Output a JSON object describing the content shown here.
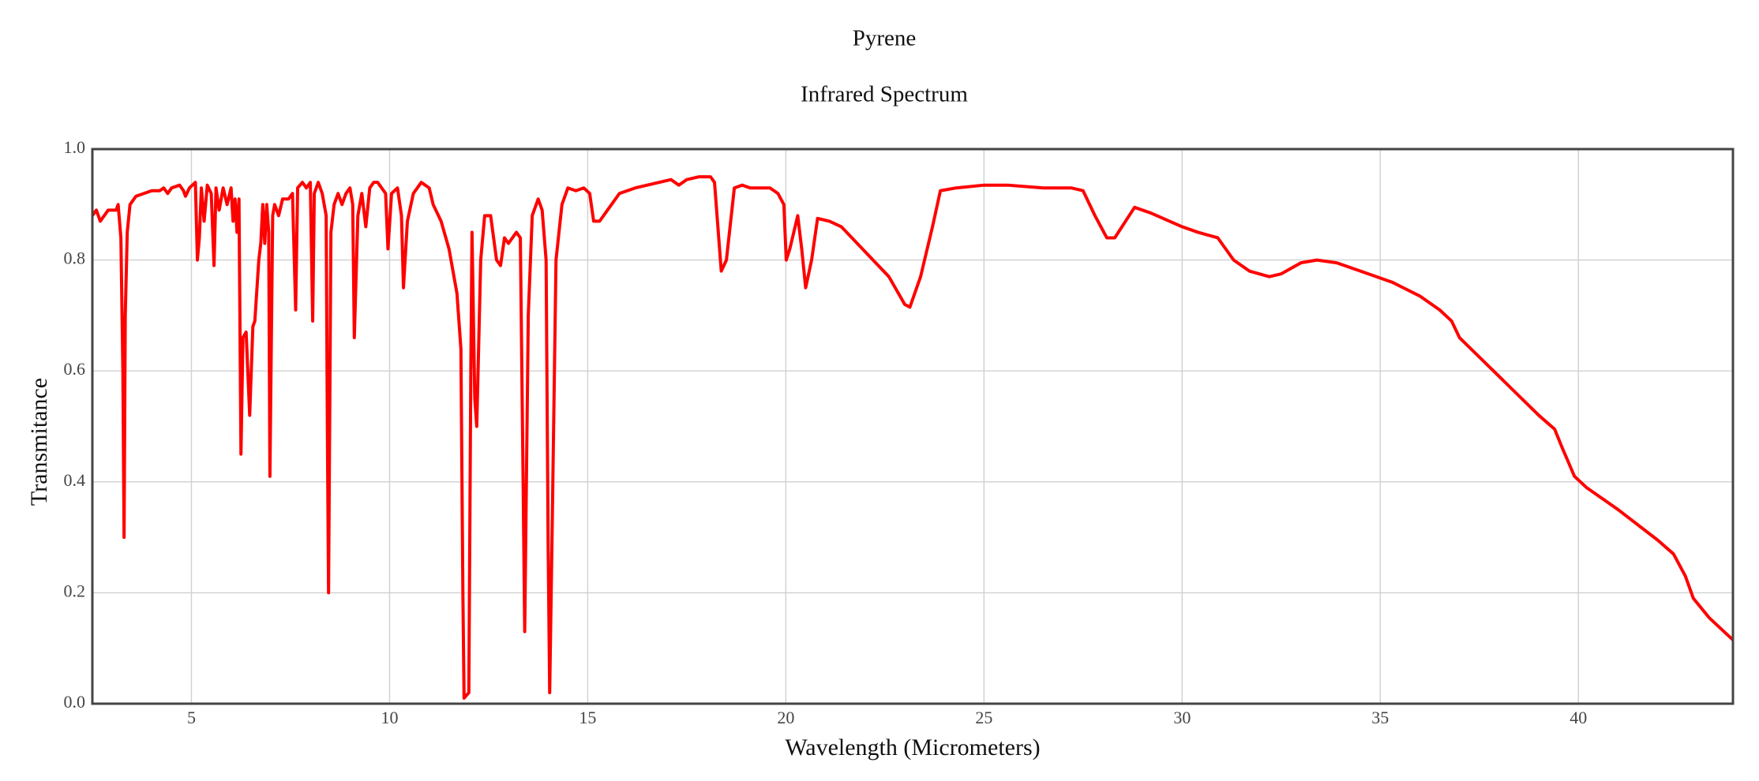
{
  "chart_data": {
    "type": "line",
    "title": "Pyrene",
    "subtitle": "Infrared Spectrum",
    "x_label": "Wavelength (Micrometers)",
    "y_label": "Transmitance",
    "color": "#ff0000",
    "grid": true,
    "xlim": [
      2.5,
      43.9
    ],
    "ylim": [
      0,
      1
    ],
    "xticks": [
      5,
      10,
      15,
      20,
      25,
      30,
      35,
      40
    ],
    "yticks": [
      {
        "value": 0,
        "label": "0.0"
      },
      0.2,
      0.4,
      0.6,
      0.8,
      {
        "value": 1,
        "label": "1.0"
      }
    ],
    "x": [
      2.5,
      2.6,
      2.7,
      2.9,
      3.1,
      3.15,
      3.22,
      3.27,
      3.3,
      3.33,
      3.38,
      3.45,
      3.6,
      3.8,
      4.0,
      4.2,
      4.3,
      4.4,
      4.5,
      4.7,
      4.8,
      4.85,
      4.95,
      5.1,
      5.15,
      5.2,
      5.25,
      5.32,
      5.4,
      5.5,
      5.57,
      5.62,
      5.7,
      5.8,
      5.9,
      6.0,
      6.05,
      6.1,
      6.15,
      6.2,
      6.25,
      6.3,
      6.38,
      6.47,
      6.55,
      6.6,
      6.7,
      6.75,
      6.8,
      6.85,
      6.9,
      6.95,
      6.98,
      7.05,
      7.1,
      7.2,
      7.3,
      7.45,
      7.55,
      7.63,
      7.68,
      7.8,
      7.9,
      8.0,
      8.06,
      8.1,
      8.2,
      8.3,
      8.4,
      8.43,
      8.46,
      8.52,
      8.6,
      8.7,
      8.8,
      8.9,
      9.0,
      9.07,
      9.11,
      9.2,
      9.3,
      9.4,
      9.5,
      9.6,
      9.7,
      9.9,
      9.96,
      10.05,
      10.2,
      10.3,
      10.35,
      10.45,
      10.6,
      10.8,
      11.0,
      11.1,
      11.3,
      11.5,
      11.7,
      11.8,
      11.85,
      11.88,
      12.0,
      12.05,
      12.08,
      12.15,
      12.2,
      12.3,
      12.4,
      12.55,
      12.7,
      12.8,
      12.9,
      13.0,
      13.2,
      13.3,
      13.37,
      13.41,
      13.5,
      13.6,
      13.75,
      13.85,
      13.95,
      14.0,
      14.04,
      14.1,
      14.2,
      14.35,
      14.5,
      14.7,
      14.9,
      15.05,
      15.15,
      15.3,
      15.5,
      15.8,
      16.2,
      16.8,
      17.1,
      17.3,
      17.5,
      17.8,
      18.1,
      18.2,
      18.37,
      18.5,
      18.7,
      18.9,
      19.1,
      19.6,
      19.8,
      19.95,
      20.01,
      20.1,
      20.3,
      20.4,
      20.5,
      20.65,
      20.8,
      21.1,
      21.4,
      21.8,
      22.2,
      22.6,
      23.0,
      23.13,
      23.4,
      23.7,
      23.9,
      24.3,
      25.0,
      25.6,
      26.5,
      27.2,
      27.5,
      27.8,
      28.1,
      28.3,
      28.8,
      29.2,
      30.0,
      30.4,
      30.9,
      31.3,
      31.7,
      32.2,
      32.5,
      33.0,
      33.4,
      33.9,
      34.5,
      35.3,
      36.0,
      36.5,
      36.8,
      37.0,
      38.0,
      39.0,
      39.4,
      39.6,
      39.9,
      40.2,
      41.0,
      42.0,
      42.4,
      42.7,
      42.9,
      43.3,
      43.9
    ],
    "values": [
      0.88,
      0.89,
      0.87,
      0.89,
      0.89,
      0.9,
      0.84,
      0.6,
      0.3,
      0.7,
      0.85,
      0.9,
      0.915,
      0.92,
      0.925,
      0.925,
      0.93,
      0.92,
      0.93,
      0.935,
      0.925,
      0.915,
      0.93,
      0.94,
      0.8,
      0.84,
      0.93,
      0.87,
      0.935,
      0.92,
      0.79,
      0.93,
      0.89,
      0.93,
      0.9,
      0.93,
      0.87,
      0.91,
      0.85,
      0.91,
      0.45,
      0.66,
      0.67,
      0.52,
      0.68,
      0.69,
      0.8,
      0.83,
      0.9,
      0.83,
      0.9,
      0.85,
      0.41,
      0.88,
      0.9,
      0.88,
      0.91,
      0.91,
      0.92,
      0.71,
      0.93,
      0.94,
      0.93,
      0.94,
      0.69,
      0.92,
      0.94,
      0.92,
      0.88,
      0.5,
      0.2,
      0.85,
      0.9,
      0.92,
      0.9,
      0.92,
      0.93,
      0.9,
      0.66,
      0.88,
      0.92,
      0.86,
      0.93,
      0.94,
      0.94,
      0.92,
      0.82,
      0.92,
      0.93,
      0.88,
      0.75,
      0.87,
      0.92,
      0.94,
      0.93,
      0.9,
      0.87,
      0.82,
      0.74,
      0.64,
      0.2,
      0.01,
      0.02,
      0.6,
      0.85,
      0.55,
      0.5,
      0.8,
      0.88,
      0.88,
      0.8,
      0.79,
      0.84,
      0.83,
      0.85,
      0.84,
      0.4,
      0.13,
      0.7,
      0.88,
      0.91,
      0.89,
      0.8,
      0.3,
      0.02,
      0.3,
      0.8,
      0.9,
      0.93,
      0.925,
      0.93,
      0.92,
      0.87,
      0.87,
      0.89,
      0.92,
      0.93,
      0.94,
      0.945,
      0.935,
      0.945,
      0.95,
      0.95,
      0.94,
      0.78,
      0.8,
      0.93,
      0.935,
      0.93,
      0.93,
      0.92,
      0.9,
      0.8,
      0.82,
      0.88,
      0.82,
      0.75,
      0.8,
      0.875,
      0.87,
      0.86,
      0.83,
      0.8,
      0.77,
      0.72,
      0.715,
      0.77,
      0.86,
      0.925,
      0.93,
      0.935,
      0.935,
      0.93,
      0.93,
      0.925,
      0.88,
      0.84,
      0.84,
      0.895,
      0.885,
      0.86,
      0.85,
      0.84,
      0.8,
      0.78,
      0.77,
      0.775,
      0.795,
      0.8,
      0.795,
      0.78,
      0.76,
      0.735,
      0.71,
      0.69,
      0.66,
      0.59,
      0.52,
      0.495,
      0.46,
      0.41,
      0.39,
      0.35,
      0.295,
      0.27,
      0.23,
      0.19,
      0.155,
      0.115
    ]
  }
}
